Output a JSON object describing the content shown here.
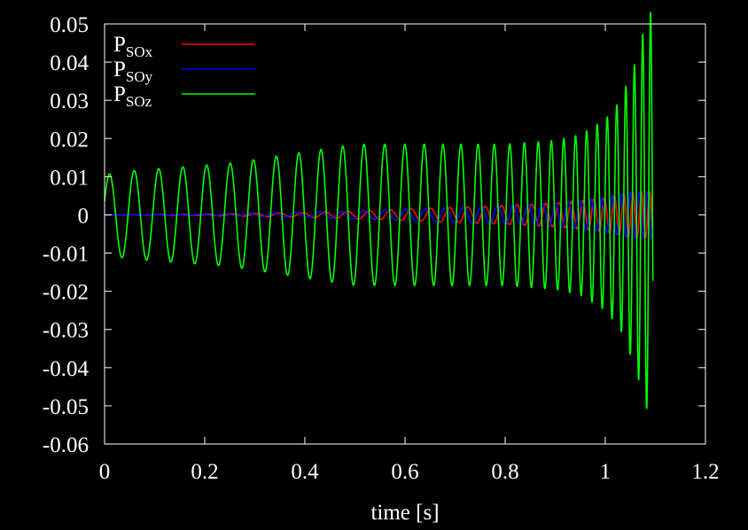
{
  "chart_data": {
    "type": "line",
    "title": "",
    "xlabel": "time [s]",
    "ylabel": "",
    "xlim": [
      0,
      1.2
    ],
    "ylim": [
      -0.06,
      0.05
    ],
    "x_ticks": [
      "0",
      "0.2",
      "0.4",
      "0.6",
      "0.8",
      "1",
      "1.2"
    ],
    "y_ticks": [
      "0.05",
      "0.04",
      "0.03",
      "0.02",
      "0.01",
      "0",
      "-0.01",
      "-0.02",
      "-0.03",
      "-0.04",
      "-0.05",
      "-0.06"
    ],
    "grid": false,
    "legend_position": "top-left",
    "background": "#000000",
    "axis_color": "#ffffff",
    "series": [
      {
        "name_base": "P",
        "name_sub": "SOx",
        "color": "#ff0000",
        "x": [
          0.0,
          0.1,
          0.2,
          0.3,
          0.4,
          0.45,
          0.5,
          0.55,
          0.6,
          0.65,
          0.7,
          0.75,
          0.8,
          0.85,
          0.9,
          0.95,
          1.0,
          1.05,
          1.1
        ],
        "amplitude": [
          0.0,
          0.0001,
          0.0002,
          0.0004,
          0.0006,
          0.0008,
          0.001,
          0.0012,
          0.0015,
          0.0017,
          0.002,
          0.0022,
          0.0025,
          0.0028,
          0.0032,
          0.0037,
          0.0045,
          0.006,
          0.006
        ]
      },
      {
        "name_base": "P",
        "name_sub": "SOy",
        "color": "#0000ff",
        "x": [
          0.0,
          0.1,
          0.2,
          0.3,
          0.4,
          0.45,
          0.5,
          0.55,
          0.6,
          0.65,
          0.7,
          0.75,
          0.8,
          0.85,
          0.9,
          0.95,
          1.0,
          1.05,
          1.1
        ],
        "amplitude": [
          0.0,
          0.0001,
          0.0002,
          0.0004,
          0.0006,
          0.0008,
          0.001,
          0.0012,
          0.0015,
          0.0017,
          0.002,
          0.0022,
          0.0025,
          0.0028,
          0.0032,
          0.0037,
          0.0045,
          0.006,
          0.006
        ]
      },
      {
        "name_base": "P",
        "name_sub": "SOz",
        "color": "#00ff00",
        "x": [
          0.0,
          0.05,
          0.1,
          0.15,
          0.2,
          0.25,
          0.3,
          0.35,
          0.4,
          0.45,
          0.5,
          0.55,
          0.6,
          0.65,
          0.7,
          0.75,
          0.8,
          0.85,
          0.9,
          0.95,
          1.0,
          1.03,
          1.06,
          1.08,
          1.09
        ],
        "amplitude": [
          0.0105,
          0.0115,
          0.012,
          0.0125,
          0.013,
          0.0135,
          0.0145,
          0.0155,
          0.0165,
          0.0175,
          0.0185,
          0.0185,
          0.0185,
          0.0185,
          0.0185,
          0.0185,
          0.0185,
          0.019,
          0.0195,
          0.021,
          0.025,
          0.03,
          0.04,
          0.05,
          0.053
        ]
      }
    ]
  }
}
